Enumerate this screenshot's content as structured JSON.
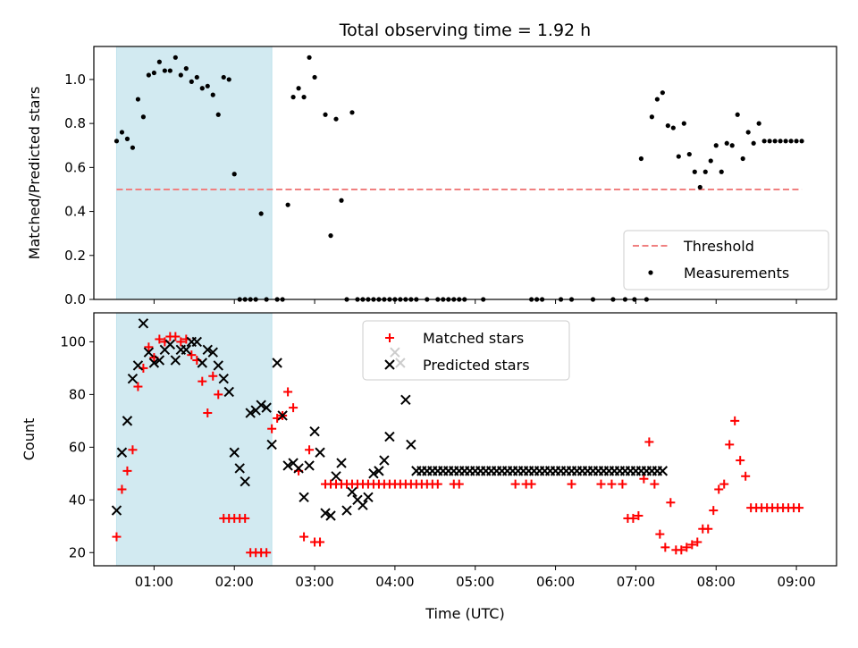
{
  "chart_data": [
    {
      "type": "scatter",
      "title": "Total observing time = 1.92 h",
      "xlabel": "",
      "ylabel": "Matched/Predicted stars",
      "ylim": [
        0,
        1.15
      ],
      "yticks": [
        "0.0",
        "0.2",
        "0.4",
        "0.6",
        "0.8",
        "1.0"
      ],
      "xlim": [
        "00:15",
        "09:30"
      ],
      "xticks": [
        "01:00",
        "02:00",
        "03:00",
        "04:00",
        "05:00",
        "06:00",
        "07:00",
        "08:00",
        "09:00"
      ],
      "shaded_interval": {
        "x": [
          "00:32",
          "02:28"
        ],
        "color": "#add8e6"
      },
      "threshold": {
        "name": "Threshold",
        "value": 0.5,
        "x": [
          "00:32",
          "09:04"
        ],
        "color": "#f08080",
        "style": "dashed"
      },
      "legend_location": "lower right",
      "legend": [
        "Threshold",
        "Measurements"
      ],
      "series": [
        {
          "name": "Measurements",
          "marker": "dot",
          "color": "#000000",
          "x": [
            "00:32",
            "00:36",
            "00:40",
            "00:44",
            "00:48",
            "00:52",
            "00:56",
            "01:00",
            "01:04",
            "01:08",
            "01:12",
            "01:16",
            "01:20",
            "01:24",
            "01:28",
            "01:32",
            "01:36",
            "01:40",
            "01:44",
            "01:48",
            "01:52",
            "01:56",
            "02:00",
            "02:04",
            "02:08",
            "02:12",
            "02:16",
            "02:20",
            "02:24",
            "02:32",
            "02:36",
            "02:40",
            "02:44",
            "02:48",
            "02:52",
            "02:56",
            "03:00",
            "03:08",
            "03:12",
            "03:16",
            "03:20",
            "03:24",
            "03:28",
            "03:32",
            "03:36",
            "03:40",
            "03:44",
            "03:48",
            "03:52",
            "03:56",
            "04:00",
            "04:04",
            "04:08",
            "04:12",
            "04:16",
            "04:24",
            "04:32",
            "04:36",
            "04:40",
            "04:44",
            "04:48",
            "04:52",
            "05:06",
            "05:42",
            "05:46",
            "05:50",
            "06:04",
            "06:12",
            "06:28",
            "06:43",
            "06:52",
            "06:59",
            "07:04",
            "07:08",
            "07:12",
            "07:16",
            "07:20",
            "07:24",
            "07:28",
            "07:32",
            "07:36",
            "07:40",
            "07:44",
            "07:48",
            "07:52",
            "07:56",
            "08:00",
            "08:04",
            "08:08",
            "08:12",
            "08:16",
            "08:20",
            "08:24",
            "08:28",
            "08:32",
            "08:36",
            "08:40",
            "08:44",
            "08:48",
            "08:52",
            "08:56",
            "09:00",
            "09:04"
          ],
          "y": [
            0.72,
            0.76,
            0.73,
            0.69,
            0.91,
            0.83,
            1.02,
            1.03,
            1.08,
            1.04,
            1.04,
            1.1,
            1.02,
            1.05,
            0.99,
            1.01,
            0.96,
            0.97,
            0.93,
            0.84,
            1.01,
            1.0,
            0.57,
            0.0,
            0.0,
            0.0,
            0.0,
            0.39,
            0.0,
            0.0,
            0.0,
            0.43,
            0.92,
            0.96,
            0.92,
            1.1,
            1.01,
            0.84,
            0.29,
            0.82,
            0.45,
            0.0,
            0.85,
            0.0,
            0.0,
            0.0,
            0.0,
            0.0,
            0.0,
            0.0,
            0.0,
            0.0,
            0.0,
            0.0,
            0.0,
            0.0,
            0.0,
            0.0,
            0.0,
            0.0,
            0.0,
            0.0,
            0.0,
            0.0,
            0.0,
            0.0,
            0.0,
            0.0,
            0.0,
            0.0,
            0.0,
            0.0,
            0.64,
            0.0,
            0.83,
            0.91,
            0.94,
            0.79,
            0.78,
            0.65,
            0.8,
            0.66,
            0.58,
            0.51,
            0.58,
            0.63,
            0.7,
            0.58,
            0.71,
            0.7,
            0.84,
            0.64,
            0.76,
            0.71,
            0.8,
            0.72,
            0.72,
            0.72,
            0.72,
            0.72,
            0.72,
            0.72,
            0.72
          ]
        }
      ]
    },
    {
      "type": "scatter",
      "title": "",
      "xlabel": "Time (UTC)",
      "ylabel": "Count",
      "ylim": [
        15,
        111
      ],
      "yticks": [
        "20",
        "40",
        "60",
        "80",
        "100"
      ],
      "xlim": [
        "00:15",
        "09:30"
      ],
      "xticks": [
        "01:00",
        "02:00",
        "03:00",
        "04:00",
        "05:00",
        "06:00",
        "07:00",
        "08:00",
        "09:00"
      ],
      "shaded_interval": {
        "x": [
          "00:32",
          "02:28"
        ],
        "color": "#add8e6"
      },
      "legend_location": "upper center",
      "legend": [
        "Matched stars",
        "Predicted stars"
      ],
      "series": [
        {
          "name": "Matched stars",
          "marker": "plus",
          "color": "#ff0000",
          "x": [
            "00:32",
            "00:36",
            "00:40",
            "00:44",
            "00:48",
            "00:52",
            "00:56",
            "01:00",
            "01:04",
            "01:08",
            "01:12",
            "01:16",
            "01:20",
            "01:24",
            "01:28",
            "01:32",
            "01:36",
            "01:40",
            "01:44",
            "01:48",
            "01:52",
            "01:56",
            "02:00",
            "02:04",
            "02:08",
            "02:12",
            "02:16",
            "02:20",
            "02:24",
            "02:28",
            "02:32",
            "02:36",
            "02:40",
            "02:44",
            "02:48",
            "02:52",
            "02:56",
            "03:00",
            "03:04",
            "03:08",
            "03:12",
            "03:16",
            "03:20",
            "03:24",
            "03:28",
            "03:32",
            "03:36",
            "03:40",
            "03:44",
            "03:48",
            "03:52",
            "03:56",
            "04:00",
            "04:04",
            "04:08",
            "04:12",
            "04:16",
            "04:20",
            "04:24",
            "04:28",
            "04:32",
            "04:44",
            "04:48",
            "05:30",
            "05:38",
            "05:42",
            "06:12",
            "06:34",
            "06:42",
            "06:50",
            "06:54",
            "06:58",
            "07:02",
            "07:06",
            "07:10",
            "07:14",
            "07:18",
            "07:22",
            "07:26",
            "07:30",
            "07:34",
            "07:38",
            "07:42",
            "07:46",
            "07:50",
            "07:54",
            "07:58",
            "08:02",
            "08:06",
            "08:10",
            "08:14",
            "08:18",
            "08:22",
            "08:26",
            "08:30",
            "08:34",
            "08:38",
            "08:42",
            "08:46",
            "08:50",
            "08:54",
            "08:58",
            "09:02"
          ],
          "y": [
            26,
            44,
            51,
            59,
            83,
            90,
            98,
            94,
            101,
            100,
            102,
            102,
            100,
            101,
            95,
            93,
            85,
            73,
            87,
            80,
            33,
            33,
            33,
            33,
            33,
            20,
            20,
            20,
            20,
            67,
            71,
            72,
            81,
            75,
            51,
            26,
            59,
            24,
            24,
            46,
            46,
            46,
            46,
            46,
            46,
            46,
            46,
            46,
            46,
            46,
            46,
            46,
            46,
            46,
            46,
            46,
            46,
            46,
            46,
            46,
            46,
            46,
            46,
            46,
            46,
            46,
            46,
            46,
            46,
            46,
            33,
            33,
            34,
            48,
            62,
            46,
            27,
            22,
            39,
            21,
            21,
            22,
            23,
            24,
            29,
            29,
            36,
            44,
            46,
            61,
            70,
            55,
            49,
            37,
            37,
            37,
            37,
            37,
            37,
            37,
            37,
            37,
            37
          ]
        },
        {
          "name": "Predicted stars",
          "marker": "x",
          "color": "#000000",
          "x": [
            "00:32",
            "00:36",
            "00:40",
            "00:44",
            "00:48",
            "00:52",
            "00:56",
            "01:00",
            "01:04",
            "01:08",
            "01:12",
            "01:16",
            "01:20",
            "01:24",
            "01:28",
            "01:32",
            "01:36",
            "01:40",
            "01:44",
            "01:48",
            "01:52",
            "01:56",
            "02:00",
            "02:04",
            "02:08",
            "02:12",
            "02:16",
            "02:20",
            "02:24",
            "02:28",
            "02:32",
            "02:36",
            "02:40",
            "02:44",
            "02:48",
            "02:52",
            "02:56",
            "03:00",
            "03:04",
            "03:08",
            "03:12",
            "03:16",
            "03:20",
            "03:24",
            "03:28",
            "03:32",
            "03:36",
            "03:40",
            "03:44",
            "03:48",
            "03:52",
            "03:56",
            "04:00",
            "04:04",
            "04:08",
            "04:12",
            "04:16",
            "04:20",
            "04:24",
            "04:28",
            "04:32",
            "04:36",
            "04:40",
            "04:44",
            "04:48",
            "04:52",
            "04:56",
            "05:00",
            "05:04",
            "05:08",
            "05:12",
            "05:16",
            "05:20",
            "05:24",
            "05:28",
            "05:32",
            "05:36",
            "05:40",
            "05:44",
            "05:48",
            "05:52",
            "05:56",
            "06:00",
            "06:04",
            "06:08",
            "06:12",
            "06:16",
            "06:20",
            "06:24",
            "06:28",
            "06:32",
            "06:36",
            "06:40",
            "06:44",
            "06:48",
            "06:52",
            "06:56",
            "07:00",
            "07:04",
            "07:08",
            "07:12",
            "07:16",
            "07:20"
          ],
          "y": [
            36,
            58,
            70,
            86,
            91,
            107,
            96,
            92,
            93,
            97,
            99,
            93,
            97,
            97,
            100,
            100,
            92,
            97,
            96,
            91,
            86,
            81,
            58,
            52,
            47,
            73,
            74,
            76,
            75,
            61,
            92,
            72,
            53,
            54,
            52,
            41,
            53,
            66,
            58,
            35,
            34,
            49,
            54,
            36,
            43,
            40,
            38,
            41,
            50,
            51,
            55,
            64,
            96,
            92,
            78,
            61,
            51,
            51,
            51,
            51,
            51,
            51,
            51,
            51,
            51,
            51,
            51,
            51,
            51,
            51,
            51,
            51,
            51,
            51,
            51,
            51,
            51,
            51,
            51,
            51,
            51,
            51,
            51,
            51,
            51,
            51,
            51,
            51,
            51,
            51,
            51,
            51,
            51,
            51,
            51,
            51,
            51,
            51,
            51,
            51,
            51,
            51,
            51
          ]
        }
      ]
    }
  ]
}
